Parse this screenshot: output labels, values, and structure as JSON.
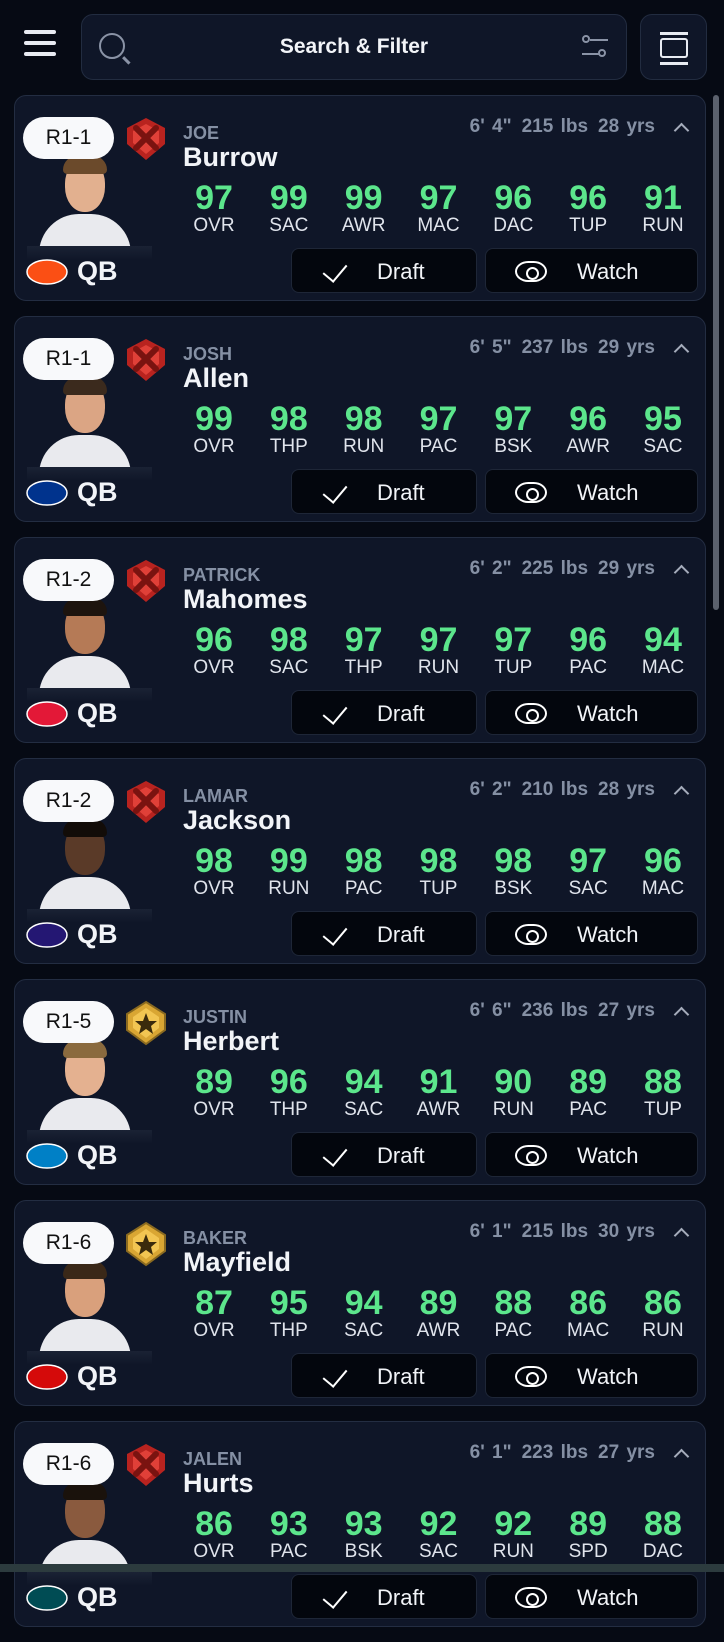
{
  "header": {
    "search_label": "Search & Filter",
    "icons": [
      "menu-icon",
      "search-icon",
      "filter-sliders-icon",
      "card-view-icon"
    ]
  },
  "colors": {
    "background": "#060a14",
    "card": "#0f1628",
    "stat_value": "#5ce68c",
    "tier_red": "#d8322c",
    "tier_gold": "#d9a633"
  },
  "buttons": {
    "draft": "Draft",
    "watch": "Watch"
  },
  "players": [
    {
      "pick": "R1-1",
      "tier": "red",
      "first": "JOE",
      "last": "Burrow",
      "height": "6' 4\"",
      "weight": "215 lbs",
      "age": "28 yrs",
      "team_logo": "bengals-logo",
      "team_color": "#fb4f14",
      "pos": "QB",
      "skin": "#e2b08f",
      "hair": "#6b4a2b",
      "stats": [
        [
          "97",
          "OVR"
        ],
        [
          "99",
          "SAC"
        ],
        [
          "99",
          "AWR"
        ],
        [
          "97",
          "MAC"
        ],
        [
          "96",
          "DAC"
        ],
        [
          "96",
          "TUP"
        ],
        [
          "91",
          "RUN"
        ]
      ]
    },
    {
      "pick": "R1-1",
      "tier": "red",
      "first": "JOSH",
      "last": "Allen",
      "height": "6' 5\"",
      "weight": "237 lbs",
      "age": "29 yrs",
      "team_logo": "bills-logo",
      "team_color": "#00338d",
      "pos": "QB",
      "skin": "#dba584",
      "hair": "#3b2a1d",
      "stats": [
        [
          "99",
          "OVR"
        ],
        [
          "98",
          "THP"
        ],
        [
          "98",
          "RUN"
        ],
        [
          "97",
          "PAC"
        ],
        [
          "97",
          "BSK"
        ],
        [
          "96",
          "AWR"
        ],
        [
          "95",
          "SAC"
        ]
      ]
    },
    {
      "pick": "R1-2",
      "tier": "red",
      "first": "PATRICK",
      "last": "Mahomes",
      "height": "6' 2\"",
      "weight": "225 lbs",
      "age": "29 yrs",
      "team_logo": "chiefs-logo",
      "team_color": "#e31837",
      "pos": "QB",
      "skin": "#b57a56",
      "hair": "#1d140e",
      "stats": [
        [
          "96",
          "OVR"
        ],
        [
          "98",
          "SAC"
        ],
        [
          "97",
          "THP"
        ],
        [
          "97",
          "RUN"
        ],
        [
          "97",
          "TUP"
        ],
        [
          "96",
          "PAC"
        ],
        [
          "94",
          "MAC"
        ]
      ]
    },
    {
      "pick": "R1-2",
      "tier": "red",
      "first": "LAMAR",
      "last": "Jackson",
      "height": "6' 2\"",
      "weight": "210 lbs",
      "age": "28 yrs",
      "team_logo": "ravens-logo",
      "team_color": "#241773",
      "pos": "QB",
      "skin": "#5a3a28",
      "hair": "#120c08",
      "stats": [
        [
          "98",
          "OVR"
        ],
        [
          "99",
          "RUN"
        ],
        [
          "98",
          "PAC"
        ],
        [
          "98",
          "TUP"
        ],
        [
          "98",
          "BSK"
        ],
        [
          "97",
          "SAC"
        ],
        [
          "96",
          "MAC"
        ]
      ]
    },
    {
      "pick": "R1-5",
      "tier": "gold",
      "first": "JUSTIN",
      "last": "Herbert",
      "height": "6' 6\"",
      "weight": "236 lbs",
      "age": "27 yrs",
      "team_logo": "chargers-logo",
      "team_color": "#0080c6",
      "pos": "QB",
      "skin": "#e4b190",
      "hair": "#8a6a3e",
      "stats": [
        [
          "89",
          "OVR"
        ],
        [
          "96",
          "THP"
        ],
        [
          "94",
          "SAC"
        ],
        [
          "91",
          "AWR"
        ],
        [
          "90",
          "RUN"
        ],
        [
          "89",
          "PAC"
        ],
        [
          "88",
          "TUP"
        ]
      ]
    },
    {
      "pick": "R1-6",
      "tier": "gold",
      "first": "BAKER",
      "last": "Mayfield",
      "height": "6' 1\"",
      "weight": "215 lbs",
      "age": "30 yrs",
      "team_logo": "buccaneers-logo",
      "team_color": "#d50a0a",
      "pos": "QB",
      "skin": "#d9a07c",
      "hair": "#3a2818",
      "stats": [
        [
          "87",
          "OVR"
        ],
        [
          "95",
          "THP"
        ],
        [
          "94",
          "SAC"
        ],
        [
          "89",
          "AWR"
        ],
        [
          "88",
          "PAC"
        ],
        [
          "86",
          "MAC"
        ],
        [
          "86",
          "RUN"
        ]
      ]
    },
    {
      "pick": "R1-6",
      "tier": "red",
      "first": "JALEN",
      "last": "Hurts",
      "height": "6' 1\"",
      "weight": "223 lbs",
      "age": "27 yrs",
      "team_logo": "eagles-logo",
      "team_color": "#004c54",
      "pos": "QB",
      "skin": "#8a5a3e",
      "hair": "#1a120c",
      "stats": [
        [
          "86",
          "OVR"
        ],
        [
          "93",
          "PAC"
        ],
        [
          "93",
          "BSK"
        ],
        [
          "92",
          "SAC"
        ],
        [
          "92",
          "RUN"
        ],
        [
          "89",
          "SPD"
        ],
        [
          "88",
          "DAC"
        ]
      ]
    }
  ]
}
